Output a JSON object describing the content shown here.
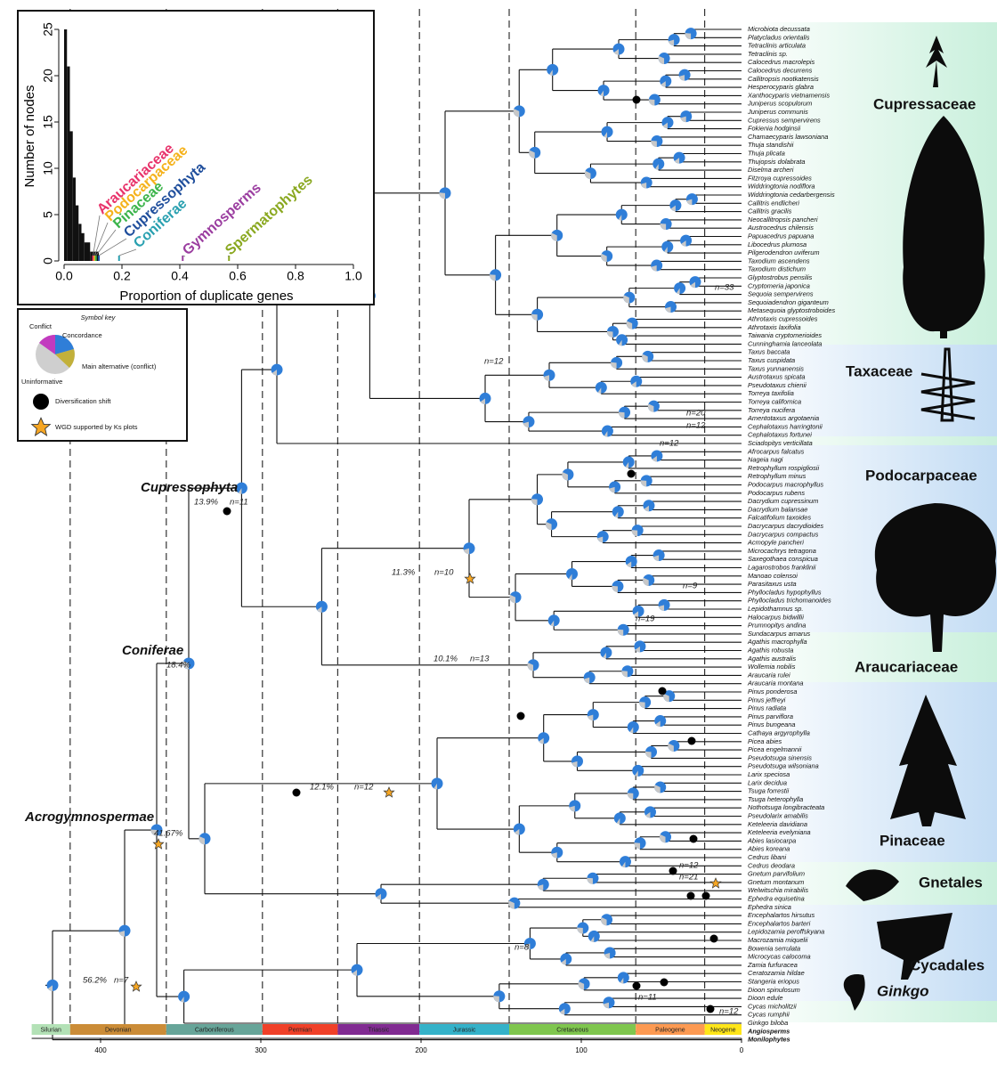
{
  "chart_data": {
    "type": "histogram",
    "xlabel": "Proportion of duplicate genes",
    "ylabel": "Number of nodes",
    "bins": [
      0,
      0.01,
      0.02,
      0.03,
      0.04,
      0.05,
      0.06,
      0.07,
      0.08,
      0.09,
      0.1,
      0.11,
      0.12
    ],
    "counts": [
      25,
      21,
      14,
      9,
      6,
      4,
      3,
      2,
      2,
      1,
      1,
      1
    ],
    "color": "#111111",
    "xlim": [
      0,
      1
    ],
    "ylim": [
      0,
      25
    ],
    "xticks": [
      {
        "value": 0,
        "label": "0.0"
      },
      0.2,
      0.4,
      0.6,
      0.8,
      {
        "value": 1,
        "label": "1.0"
      }
    ],
    "yticks": [
      0,
      5,
      10,
      15,
      20,
      25
    ],
    "annotations": [
      {
        "label": "Araucariaceae",
        "value": 0.1,
        "color": "#e8336b"
      },
      {
        "label": "Podocarpaceae",
        "value": 0.105,
        "color": "#f5b21b"
      },
      {
        "label": "Pinaceae",
        "value": 0.11,
        "color": "#3cb44b"
      },
      {
        "label": "Cupressophyta",
        "value": 0.12,
        "color": "#1f4e9c"
      },
      {
        "label": "Coniferae",
        "value": 0.19,
        "color": "#29a0b0"
      },
      {
        "label": "Gymnosperms",
        "value": 0.41,
        "color": "#9b3ea0"
      },
      {
        "label": "Spermatophytes",
        "value": 0.57,
        "color": "#8aa820"
      }
    ]
  },
  "figure": {
    "tips": [
      "Microbiota decussata",
      "Platycladus orientalis",
      "Tetraclinis articulata",
      "Tetraclinis sp.",
      "Calocedrus macrolepis",
      "Calocedrus decurrens",
      "Callitropsis nootkatensis",
      "Hesperocyparis glabra",
      "Xanthocyparis vietnamensis",
      "Juniperus scopulorum",
      "Juniperus communis",
      "Cupressus sempervirens",
      "Fokienia hodginsii",
      "Chamaecyparis lawsoniana",
      "Thuja standishii",
      "Thuja plicata",
      "Thujopsis dolabrata",
      "Diselma archeri",
      "Fitzroya cupressoides",
      "Widdringtonia nodiflora",
      "Widdringtonia cedarbergensis",
      "Callitris endlicheri",
      "Callitris gracilis",
      "Neocallitropsis pancheri",
      "Austrocedrus chilensis",
      "Papuacedrus papuana",
      "Libocedrus plumosa",
      "Pilgerodendron uviferum",
      "Taxodium ascendens",
      "Taxodium distichum",
      "Glyptostrobus pensilis",
      "Cryptomeria japonica",
      "Sequoia sempervirens",
      "Sequoiadendron giganteum",
      "Metasequoia glyptostroboides",
      "Athrotaxis cupressoides",
      "Athrotaxis laxifolia",
      "Taiwania cryptomerioides",
      "Cunninghamia lanceolata",
      "Taxus baccata",
      "Taxus cuspidata",
      "Taxus yunnanensis",
      "Austrotaxus spicata",
      "Pseudotaxus chienii",
      "Torreya taxifolia",
      "Torreya californica",
      "Torreya nucifera",
      "Amentotaxus argotaenia",
      "Cephalotaxus harringtonii",
      "Cephalotaxus fortunei",
      "Sciadopitys verticillata",
      "Afrocarpus falcatus",
      "Nageia nagi",
      "Retrophyllum rospigliosii",
      "Retrophyllum minus",
      "Podocarpus macrophyllus",
      "Podocarpus rubens",
      "Dacrydium cupressinum",
      "Dacrydium balansae",
      "Falcatifolium taxoides",
      "Dacrycarpus dacrydioides",
      "Dacrycarpus compactus",
      "Acmopyle pancheri",
      "Microcachrys tetragona",
      "Saxegothaea conspicua",
      "Lagarostrobos franklinii",
      "Manoao colensoi",
      "Parasitaxus usta",
      "Phyllocladus hypophyllus",
      "Phyllocladus trichomanoides",
      "Lepidothamnus sp.",
      "Halocarpus bidwillii",
      "Prumnopitys andina",
      "Sundacarpus amarus",
      "Agathis macrophylla",
      "Agathis robusta",
      "Agathis australis",
      "Wollemia nobilis",
      "Araucaria rulei",
      "Araucaria montana",
      "Pinus ponderosa",
      "Pinus jeffreyi",
      "Pinus radiata",
      "Pinus parviflora",
      "Pinus bungeana",
      "Cathaya argyrophylla",
      "Picea abies",
      "Picea engelmannii",
      "Pseudotsuga sinensis",
      "Pseudotsuga wilsoniana",
      "Larix speciosa",
      "Larix decidua",
      "Tsuga forrestii",
      "Tsuga heterophylla",
      "Nothotsuga longibracteata",
      "Pseudolarix amabilis",
      "Keteleeria davidiana",
      "Keteleeria evelyniana",
      "Abies lasiocarpa",
      "Abies koreana",
      "Cedrus libani",
      "Cedrus deodara",
      "Gnetum parvifolium",
      "Gnetum montanum",
      "Welwitschia mirabilis",
      "Ephedra equisetina",
      "Ephedra sinica",
      "Encephalartos hirsutus",
      "Encephalartos barteri",
      "Lepidozamia peroffskyana",
      "Macrozamia miquelii",
      "Bowenia serrulata",
      "Microcycas calocoma",
      "Zamia furfuracea",
      "Ceratozamia hildae",
      "Stangeria eriopus",
      "Dioon spinulosum",
      "Dioon edule",
      "Cycas micholitzii",
      "Cycas rumphii",
      "Ginkgo biloba",
      "Angiosperms",
      "Monilophytes"
    ],
    "family_labels": [
      "Cupressaceae",
      "Taxaceae",
      "Podocarpaceae",
      "Araucariaceae",
      "Pinaceae",
      "Gnetales",
      "Cycadales",
      "Ginkgo"
    ],
    "clade_labels": [
      "Cupressophyta",
      "Coniferae",
      "Acrogymnospermae"
    ],
    "node_annotations": [
      "13.9%",
      "n=11",
      "18.4%",
      "41.67%",
      "56.2%",
      "n=7",
      "11.3%",
      "n=10",
      "10.1%",
      "n=13",
      "12.1%",
      "n=12",
      "n=33",
      "n=12",
      "n=20",
      "n=12",
      "n=12",
      "n=9",
      "n=19",
      "n=12",
      "n=21",
      "n=8",
      "n=11",
      "n=12"
    ],
    "time_axis": {
      "ticks": [
        400,
        300,
        200,
        100,
        0
      ],
      "periods": [
        "Silurian",
        "Devonian",
        "Carboniferous",
        "Permian",
        "Triassic",
        "Jurassic",
        "Cretaceous",
        "Paleogene",
        "Neogene"
      ]
    },
    "symbol_key": {
      "title": "Symbol key",
      "conflict": "Conflict",
      "concordance": "Concordance",
      "main_alternative": "Main alternative (conflict)",
      "uninformative": "Uninformative",
      "diversification": "Diversification shift",
      "wgd": "WGD supported by Ks plots"
    }
  }
}
